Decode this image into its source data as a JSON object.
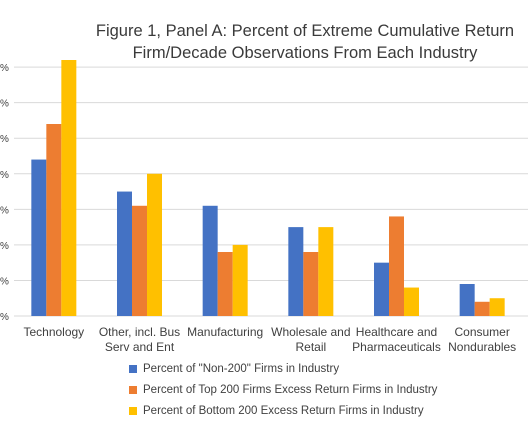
{
  "chart_data": {
    "type": "bar",
    "title_lines": [
      "Figure 1, Panel A: Percent of Extreme Cumulative Return",
      "Firm/Decade Observations From Each Industry"
    ],
    "categories": [
      [
        "Technology"
      ],
      [
        "Other, incl. Bus",
        "Serv and Ent"
      ],
      [
        "Manufacturing"
      ],
      [
        "Wholesale and",
        "Retail"
      ],
      [
        "Healthcare and",
        "Pharmaceuticals"
      ],
      [
        "Consumer",
        "Nondurables"
      ]
    ],
    "series": [
      {
        "name": "Percent of  \"Non-200\" Firms in Industry",
        "color": "#4472C4",
        "values": [
          27,
          22.5,
          20.5,
          17.5,
          12.5,
          9.5
        ]
      },
      {
        "name": "Percent of Top 200 Firms Excess Return Firms in Industry",
        "color": "#ED7D31",
        "values": [
          32,
          20.5,
          14,
          14,
          19,
          7
        ]
      },
      {
        "name": "Percent of Bottom 200 Excess Return Firms in Industry",
        "color": "#FFC000",
        "values": [
          41,
          25,
          15,
          17.5,
          9,
          7.5
        ]
      }
    ],
    "ylim": [
      5,
      41
    ],
    "yticks": [
      5,
      10,
      15,
      20,
      25,
      30,
      35,
      40
    ],
    "ytick_labels": [
      "%",
      "%",
      "%",
      "%",
      "%",
      "%",
      "%",
      "%"
    ],
    "grid": true,
    "legend_position": "bottom"
  }
}
